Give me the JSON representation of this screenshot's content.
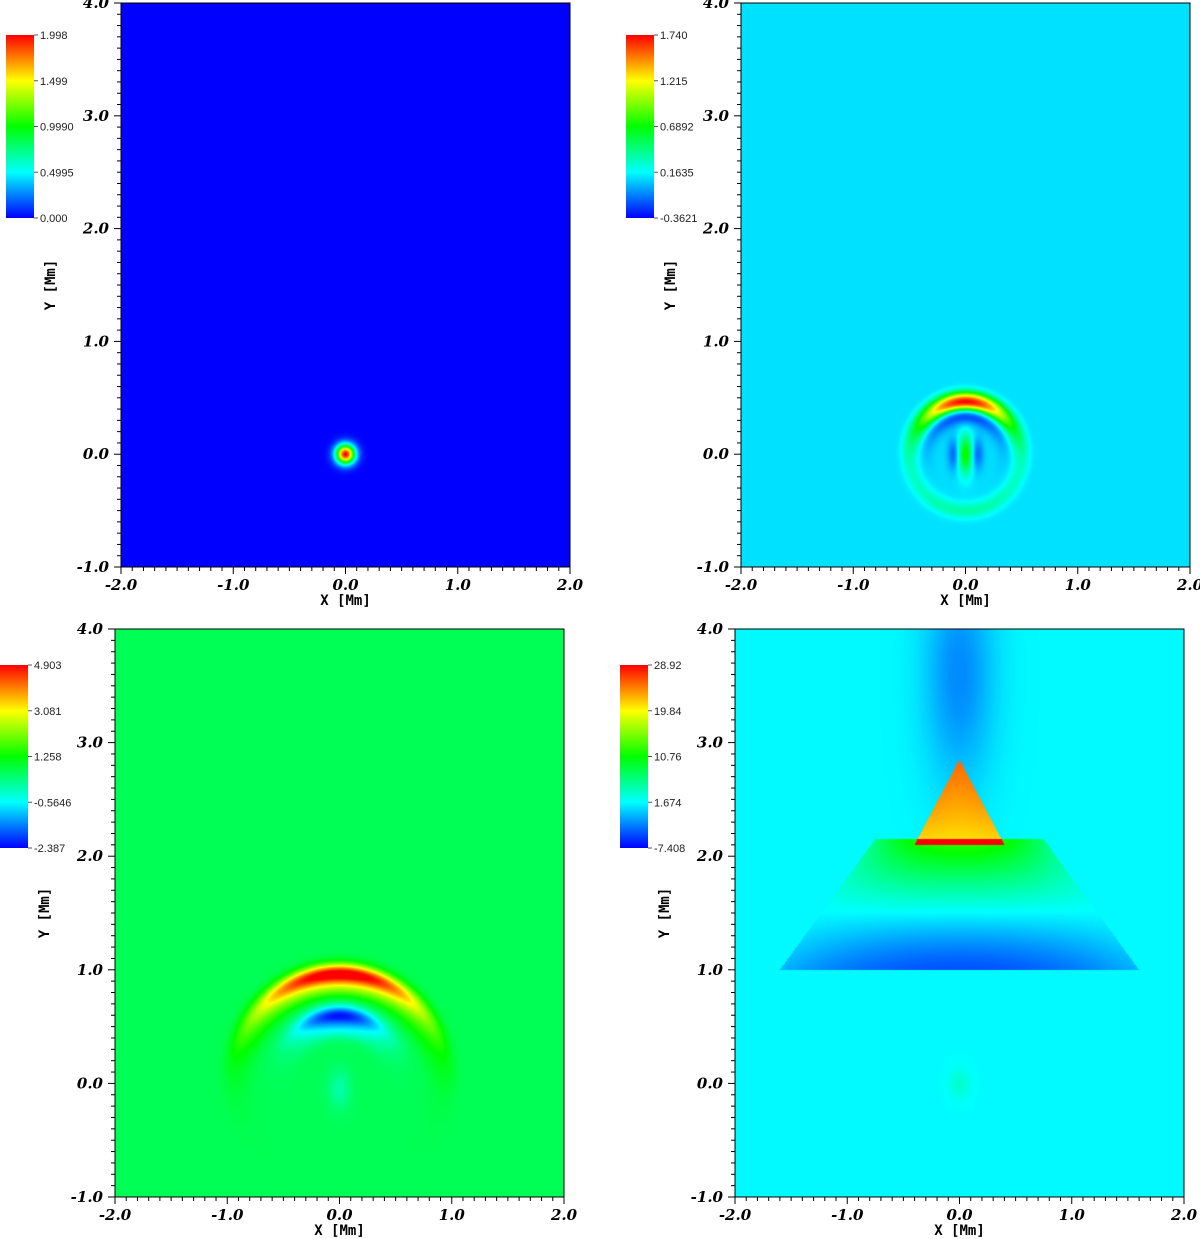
{
  "chart_data": [
    {
      "type": "heatmap",
      "title": "",
      "xlabel": "X [Mm]",
      "ylabel": "Y [Mm]",
      "xlim": [
        -2.0,
        2.0
      ],
      "ylim": [
        -1.0,
        4.0
      ],
      "xticks": [
        "-2.0",
        "-1.0",
        "0.0",
        "1.0",
        "2.0"
      ],
      "yticks": [
        "-1.0",
        "0.0",
        "1.0",
        "2.0",
        "3.0",
        "4.0"
      ],
      "colorbar": {
        "min": 0.0,
        "max": 1.998,
        "labels": [
          "1.998",
          "1.499",
          "0.9990",
          "0.4995",
          "0.000"
        ]
      },
      "background_level": 0.0,
      "features": [
        {
          "kind": "blob",
          "x": 0.0,
          "y": 0.0,
          "sx": 0.06,
          "sy": 0.06,
          "amp": 1.998
        }
      ]
    },
    {
      "type": "heatmap",
      "title": "",
      "xlabel": "X [Mm]",
      "ylabel": "Y [Mm]",
      "xlim": [
        -2.0,
        2.0
      ],
      "ylim": [
        -1.0,
        4.0
      ],
      "xticks": [
        "-2.0",
        "-1.0",
        "0.0",
        "1.0",
        "2.0"
      ],
      "yticks": [
        "-1.0",
        "0.0",
        "1.0",
        "2.0",
        "3.0",
        "4.0"
      ],
      "colorbar": {
        "min": -0.3621,
        "max": 1.74,
        "labels": [
          "1.740",
          "1.215",
          "0.6892",
          "0.1635",
          "-0.3621"
        ]
      },
      "background_level": 0.1,
      "features": [
        {
          "kind": "arc",
          "x": 0.0,
          "y": 0.0,
          "r": 0.45,
          "width": 0.05,
          "amp": 1.6,
          "span": 1.0
        },
        {
          "kind": "arc",
          "x": 0.0,
          "y": 0.0,
          "r": 0.36,
          "width": 0.06,
          "amp": -0.45,
          "span": 1.2
        },
        {
          "kind": "arc",
          "x": 0.0,
          "y": 0.0,
          "r": 0.52,
          "width": 0.04,
          "amp": 0.5,
          "span": 1.3
        },
        {
          "kind": "blob",
          "x": 0.0,
          "y": 0.0,
          "sx": 0.05,
          "sy": 0.12,
          "amp": 0.65
        },
        {
          "kind": "blob",
          "x": -0.1,
          "y": 0.0,
          "sx": 0.04,
          "sy": 0.1,
          "amp": -0.3
        },
        {
          "kind": "blob",
          "x": 0.1,
          "y": 0.0,
          "sx": 0.04,
          "sy": 0.1,
          "amp": -0.3
        },
        {
          "kind": "arc",
          "x": 0.0,
          "y": 0.0,
          "r": 0.5,
          "width": 0.05,
          "amp": 0.25,
          "span": 1.4,
          "down": true
        }
      ]
    },
    {
      "type": "heatmap",
      "title": "",
      "xlabel": "X [Mm]",
      "ylabel": "Y [Mm]",
      "xlim": [
        -2.0,
        2.0
      ],
      "ylim": [
        -1.0,
        4.0
      ],
      "xticks": [
        "-2.0",
        "-1.0",
        "0.0",
        "1.0",
        "2.0"
      ],
      "yticks": [
        "-1.0",
        "0.0",
        "1.0",
        "2.0",
        "3.0",
        "4.0"
      ],
      "colorbar": {
        "min": -2.387,
        "max": 4.903,
        "labels": [
          "4.903",
          "3.081",
          "1.258",
          "-0.5646",
          "-2.387"
        ]
      },
      "background_level": 0.65,
      "features": [
        {
          "kind": "arc",
          "x": 0.0,
          "y": 0.0,
          "r": 0.97,
          "width": 0.06,
          "amp": 4.2,
          "span": 0.9
        },
        {
          "kind": "arc",
          "x": 0.0,
          "y": 0.0,
          "r": 0.86,
          "width": 0.07,
          "amp": 1.6,
          "span": 1.05
        },
        {
          "kind": "arc",
          "x": 0.0,
          "y": 0.0,
          "r": 0.6,
          "width": 0.06,
          "amp": -2.8,
          "span": 0.7
        },
        {
          "kind": "arc",
          "x": 0.0,
          "y": 0.0,
          "r": 0.48,
          "width": 0.06,
          "amp": -1.0,
          "span": 0.8
        },
        {
          "kind": "blob",
          "x": 0.0,
          "y": -0.05,
          "sx": 0.07,
          "sy": 0.12,
          "amp": -0.6
        }
      ]
    },
    {
      "type": "heatmap",
      "title": "",
      "xlabel": "X [Mm]",
      "ylabel": "Y [Mm]",
      "xlim": [
        -2.0,
        2.0
      ],
      "ylim": [
        -1.0,
        4.0
      ],
      "xticks": [
        "-2.0",
        "-1.0",
        "0.0",
        "1.0",
        "2.0"
      ],
      "yticks": [
        "-1.0",
        "0.0",
        "1.0",
        "2.0",
        "3.0",
        "4.0"
      ],
      "colorbar": {
        "min": -7.408,
        "max": 28.92,
        "labels": [
          "28.92",
          "19.84",
          "10.76",
          "1.674",
          "-7.408"
        ]
      },
      "background_level": 1.5,
      "features": [
        {
          "kind": "spike",
          "x": 0.0,
          "y_base": 2.1,
          "y_top": 2.85,
          "half_width": 0.4,
          "amp": 26.0
        },
        {
          "kind": "band",
          "y_min": 1.0,
          "y_max": 2.15,
          "half_width_bottom": 1.6,
          "half_width_top": 0.75,
          "amp_top": 12.0,
          "amp_bottom": -6.0
        },
        {
          "kind": "blob",
          "x": 0.0,
          "y": 3.6,
          "sx": 0.22,
          "sy": 0.7,
          "amp": -4.0
        },
        {
          "kind": "blob",
          "x": 0.0,
          "y": 0.0,
          "sx": 0.07,
          "sy": 0.1,
          "amp": 2.0
        }
      ]
    }
  ]
}
